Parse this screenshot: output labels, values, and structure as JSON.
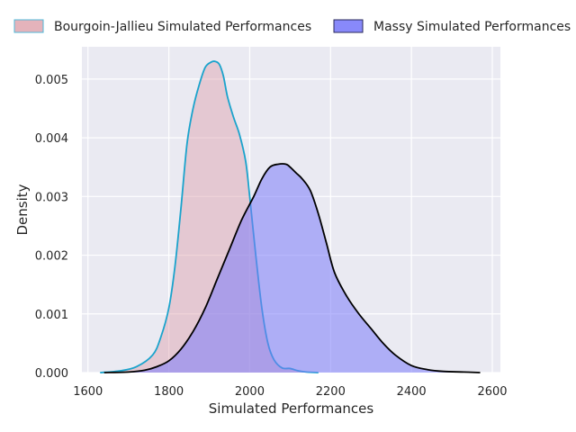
{
  "chart_data": {
    "type": "area",
    "xlabel": "Simulated Performances",
    "ylabel": "Density",
    "xlim": [
      1585,
      2620
    ],
    "ylim": [
      0,
      0.00555
    ],
    "xticks": [
      1600,
      1800,
      2000,
      2200,
      2400,
      2600
    ],
    "xtick_labels": [
      "1600",
      "1800",
      "2000",
      "2200",
      "2400",
      "2600"
    ],
    "yticks": [
      0,
      0.001,
      0.002,
      0.003,
      0.004,
      0.005
    ],
    "ytick_labels": [
      "0.000",
      "0.001",
      "0.002",
      "0.003",
      "0.004",
      "0.005"
    ],
    "grid": true,
    "legend_position": "top",
    "series": [
      {
        "name": "Bourgoin-Jallieu Simulated Performances",
        "fill_color": "#dda0aa",
        "fill_opacity": 0.45,
        "line_color": "#1aa3cc",
        "legend_edge_color": "#4fb8d8",
        "x": [
          1630,
          1680,
          1720,
          1760,
          1780,
          1800,
          1815,
          1830,
          1845,
          1860,
          1875,
          1890,
          1905,
          1915,
          1925,
          1935,
          1945,
          1960,
          1975,
          1990,
          2000,
          2015,
          2030,
          2045,
          2060,
          2080,
          2100,
          2120,
          2140,
          2170
        ],
        "y": [
          0.0,
          3e-05,
          0.0001,
          0.0003,
          0.0006,
          0.0011,
          0.0018,
          0.0028,
          0.0039,
          0.0045,
          0.0049,
          0.0052,
          0.00529,
          0.0053,
          0.00525,
          0.00505,
          0.0047,
          0.00435,
          0.00405,
          0.0036,
          0.003,
          0.002,
          0.0011,
          0.0005,
          0.00022,
          8e-05,
          7e-05,
          3e-05,
          1e-05,
          0.0
        ]
      },
      {
        "name": "Massy Simulated Performances",
        "fill_color": "#7b7cfa",
        "fill_opacity": 0.55,
        "line_color": "#000000",
        "legend_edge_color": "#2a2a5a",
        "x": [
          1640,
          1700,
          1740,
          1770,
          1800,
          1830,
          1860,
          1890,
          1920,
          1950,
          1980,
          2010,
          2030,
          2050,
          2070,
          2090,
          2100,
          2115,
          2130,
          2150,
          2170,
          2190,
          2210,
          2240,
          2270,
          2300,
          2330,
          2360,
          2400,
          2440,
          2480,
          2530,
          2570
        ],
        "y": [
          0.0,
          1e-05,
          4e-05,
          0.0001,
          0.0002,
          0.0004,
          0.0007,
          0.0011,
          0.0016,
          0.0021,
          0.0026,
          0.003,
          0.0033,
          0.0035,
          0.00355,
          0.00355,
          0.0035,
          0.0034,
          0.0033,
          0.0031,
          0.0027,
          0.0022,
          0.0017,
          0.0013,
          0.001,
          0.00075,
          0.0005,
          0.0003,
          0.00012,
          5e-05,
          2e-05,
          1e-05,
          0.0
        ]
      }
    ]
  }
}
